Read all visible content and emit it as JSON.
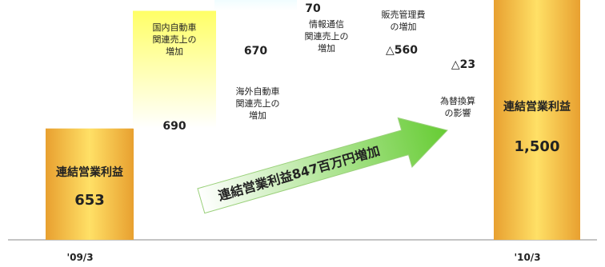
{
  "chart_data": {
    "type": "waterfall",
    "baseline_label": "",
    "categories": [
      "'09/3",
      "国内自動車関連売上の増加",
      "海外自動車関連売上の増加",
      "情報通信関連売上の増加",
      "販売管理費の増加",
      "為替換算の影響",
      "'10/3"
    ],
    "x_tick_labels": [
      "'09/3",
      "'10/3"
    ],
    "steps": [
      {
        "kind": "total",
        "value": 653,
        "label_lines": [
          "連結営業利益"
        ],
        "value_label": "653",
        "color_top": "#ffe066",
        "color_bottom": "#e8a030"
      },
      {
        "kind": "delta",
        "value": 690,
        "label_lines": [],
        "value_label": "690",
        "color_top": "#ffff66",
        "color_bottom": "#ffffff"
      },
      {
        "kind": "delta",
        "value": 670,
        "label_lines": [],
        "value_label": "670",
        "color_top": "#66e8ff",
        "color_bottom": "#ffffff"
      },
      {
        "kind": "delta",
        "value": 70,
        "label_lines": [],
        "value_label": "70",
        "color_top": "#3366ff",
        "color_bottom": "#ffffff"
      },
      {
        "kind": "delta",
        "value": -560,
        "label_lines": [],
        "value_label": "△560",
        "color_top": "#66dd66",
        "color_bottom": "#ffffff"
      },
      {
        "kind": "delta",
        "value": -23,
        "label_lines": [],
        "value_label": "△23",
        "color_top": "#ee66cc",
        "color_bottom": "#ffffff"
      },
      {
        "kind": "total",
        "value": 1500,
        "label_lines": [
          "連結営業利益"
        ],
        "value_label": "1,500",
        "color_top": "#ffe066",
        "color_bottom": "#e8a030"
      }
    ],
    "annotations": [
      {
        "target": 1,
        "lines": [
          "国内自動車",
          "関連売上の",
          "増加"
        ]
      },
      {
        "target": 2,
        "lines": [
          "海外自動車",
          "関連売上の",
          "増加"
        ]
      },
      {
        "target": 3,
        "lines": [
          "情報通信",
          "関連売上の",
          "増加"
        ]
      },
      {
        "target": 4,
        "lines": [
          "販売管理費",
          "の増加"
        ]
      },
      {
        "target": 5,
        "lines": [
          "為替換算",
          "の影響"
        ]
      }
    ],
    "reference_line": {
      "value": 1500,
      "style": "dotted",
      "color": "#2233aa"
    },
    "arrow_text": "連結営業利益847百万円増加",
    "arrow_color_start": "#ffffff",
    "arrow_color_end": "#66cc33",
    "grid": false
  }
}
